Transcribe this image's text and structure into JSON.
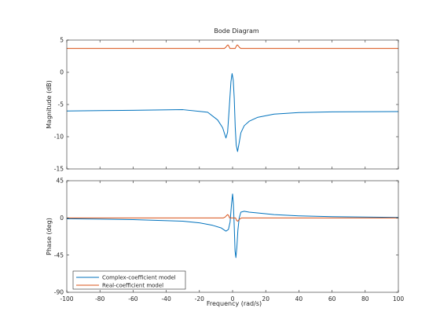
{
  "chart_data": [
    {
      "type": "line",
      "title": "Bode Diagram",
      "xlabel": "",
      "ylabel": "Magnitude (dB)",
      "xlim": [
        -100,
        100
      ],
      "ylim": [
        -15,
        5
      ],
      "xticks": [],
      "yticks": [
        5,
        0,
        -5,
        -10,
        -15
      ],
      "grid": false,
      "series": [
        {
          "name": "Complex-coefficient model",
          "color": "#0072BD",
          "points": [
            [
              -100,
              -6.0
            ],
            [
              -60,
              -5.9
            ],
            [
              -30,
              -5.8
            ],
            [
              -15,
              -6.2
            ],
            [
              -9,
              -7.4
            ],
            [
              -6,
              -8.6
            ],
            [
              -4,
              -10.2
            ],
            [
              -3,
              -9.3
            ],
            [
              -2,
              -5.5
            ],
            [
              -1,
              -1.5
            ],
            [
              -0.3,
              -0.2
            ],
            [
              0.4,
              -1.2
            ],
            [
              1,
              -4.0
            ],
            [
              1.6,
              -8.5
            ],
            [
              2.2,
              -11.3
            ],
            [
              3,
              -12.3
            ],
            [
              3.8,
              -11.2
            ],
            [
              5,
              -9.4
            ],
            [
              7,
              -8.3
            ],
            [
              10,
              -7.6
            ],
            [
              15,
              -7.0
            ],
            [
              25,
              -6.5
            ],
            [
              40,
              -6.25
            ],
            [
              60,
              -6.15
            ],
            [
              100,
              -6.1
            ]
          ]
        },
        {
          "name": "Real-coefficient model",
          "color": "#D95319",
          "points": [
            [
              -100,
              3.7
            ],
            [
              -5,
              3.7
            ],
            [
              -4.2,
              3.85
            ],
            [
              -3.5,
              4.1
            ],
            [
              -2.8,
              4.25
            ],
            [
              -2.2,
              4.05
            ],
            [
              -1.6,
              3.7
            ],
            [
              0,
              3.7
            ],
            [
              1.6,
              3.7
            ],
            [
              2.2,
              4.05
            ],
            [
              2.8,
              4.25
            ],
            [
              3.5,
              4.1
            ],
            [
              4.2,
              3.85
            ],
            [
              5,
              3.7
            ],
            [
              100,
              3.7
            ]
          ]
        }
      ]
    },
    {
      "type": "line",
      "title": "",
      "xlabel": "Frequency  (rad/s)",
      "ylabel": "Phase (deg)",
      "xlim": [
        -100,
        100
      ],
      "ylim": [
        -90,
        45
      ],
      "xticks": [
        -100,
        -80,
        -60,
        -40,
        -20,
        0,
        20,
        40,
        60,
        80,
        100
      ],
      "yticks": [
        45,
        0,
        -45,
        -90
      ],
      "grid": false,
      "legend_location": "bottom-left",
      "series": [
        {
          "name": "Complex-coefficient model",
          "color": "#0072BD",
          "points": [
            [
              -100,
              -1
            ],
            [
              -60,
              -2
            ],
            [
              -30,
              -4
            ],
            [
              -20,
              -6
            ],
            [
              -12,
              -9
            ],
            [
              -7,
              -12
            ],
            [
              -4,
              -16
            ],
            [
              -2.5,
              -14
            ],
            [
              -1.5,
              -5
            ],
            [
              -0.7,
              15
            ],
            [
              0,
              29
            ],
            [
              0.5,
              17
            ],
            [
              1,
              -10
            ],
            [
              1.5,
              -40
            ],
            [
              2,
              -48
            ],
            [
              2.6,
              -35
            ],
            [
              3.2,
              -15
            ],
            [
              4,
              0
            ],
            [
              5,
              7
            ],
            [
              7,
              8
            ],
            [
              10,
              7
            ],
            [
              15,
              6
            ],
            [
              25,
              4
            ],
            [
              40,
              2.5
            ],
            [
              60,
              1.5
            ],
            [
              100,
              0.5
            ]
          ]
        },
        {
          "name": "Real-coefficient model",
          "color": "#D95319",
          "points": [
            [
              -100,
              0
            ],
            [
              -5.5,
              0
            ],
            [
              -4.5,
              1
            ],
            [
              -3.8,
              2.5
            ],
            [
              -3,
              4
            ],
            [
              -2.4,
              3
            ],
            [
              -1.8,
              0
            ],
            [
              1.8,
              0
            ],
            [
              2.4,
              -3
            ],
            [
              3,
              -4
            ],
            [
              3.8,
              -2.5
            ],
            [
              4.5,
              -1
            ],
            [
              5.5,
              0
            ],
            [
              100,
              0
            ]
          ]
        }
      ]
    }
  ]
}
